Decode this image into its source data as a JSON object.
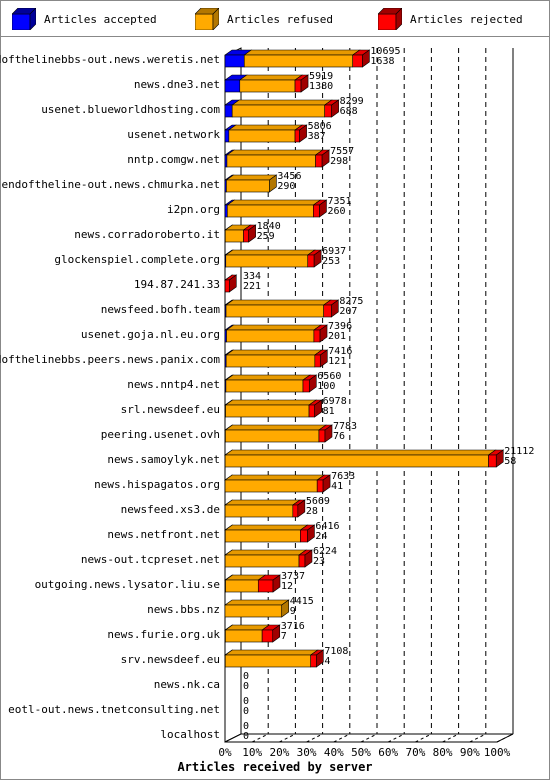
{
  "legend": [
    {
      "label": "Articles accepted",
      "color": "#0000ff",
      "dark": "#000099"
    },
    {
      "label": "Articles refused",
      "color": "#ffaa00",
      "dark": "#b37700"
    },
    {
      "label": "Articles rejected",
      "color": "#ff0000",
      "dark": "#a00000"
    }
  ],
  "chart_data": {
    "type": "bar",
    "orientation": "horizontal",
    "stacked": true,
    "xlabel": "Articles received by server",
    "x_ticks": [
      "0%",
      "10%",
      "20%",
      "30%",
      "40%",
      "50%",
      "60%",
      "70%",
      "80%",
      "90%",
      "100%"
    ],
    "max_total": 21170,
    "categories": [
      "endofthelinebbs-out.news.weretis.net",
      "news.dne3.net",
      "usenet.blueworldhosting.com",
      "usenet.network",
      "nntp.comgw.net",
      "endoftheline-out.news.chmurka.net",
      "i2pn.org",
      "news.corradoroberto.it",
      "glockenspiel.complete.org",
      "194.87.241.33",
      "newsfeed.bofh.team",
      "usenet.goja.nl.eu.org",
      "endofthelinebbs.peers.news.panix.com",
      "news.nntp4.net",
      "srl.newsdeef.eu",
      "peering.usenet.ovh",
      "news.samoylyk.net",
      "news.hispagatos.org",
      "newsfeed.xs3.de",
      "news.netfront.net",
      "news-out.tcpreset.net",
      "outgoing.news.lysator.liu.se",
      "news.bbs.nz",
      "news.furie.org.uk",
      "srv.newsdeef.eu",
      "news.nk.ca",
      "eotl-out.news.tnetconsulting.net",
      "localhost"
    ],
    "labels_top": [
      "10695",
      "5919",
      "8299",
      "5806",
      "7557",
      "3456",
      "7351",
      "1840",
      "6937",
      "334",
      "8275",
      "7396",
      "7416",
      "6560",
      "6978",
      "7783",
      "21112",
      "7633",
      "5669",
      "6416",
      "6224",
      "3737",
      "4415",
      "3716",
      "7108",
      "0",
      "0",
      "0"
    ],
    "labels_bottom": [
      "1638",
      "1380",
      "688",
      "387",
      "298",
      "290",
      "260",
      "259",
      "253",
      "221",
      "207",
      "201",
      "121",
      "100",
      "81",
      "76",
      "58",
      "41",
      "28",
      "24",
      "23",
      "12",
      "9",
      "7",
      "4",
      "0",
      "0",
      "0"
    ],
    "series": [
      {
        "name": "Articles accepted",
        "values": [
          1500,
          1150,
          560,
          300,
          150,
          110,
          180,
          20,
          60,
          5,
          80,
          120,
          90,
          70,
          40,
          30,
          10,
          5,
          8,
          20,
          10,
          40,
          0,
          30,
          20,
          0,
          0,
          0
        ]
      },
      {
        "name": "Articles refused",
        "values": [
          8440,
          4300,
          7200,
          5150,
          6900,
          3346,
          6700,
          1420,
          6380,
          0,
          7600,
          6800,
          6900,
          6000,
          6500,
          7280,
          20500,
          7170,
          5270,
          5850,
          5750,
          2550,
          4415,
          2860,
          6650,
          0,
          0,
          0
        ]
      },
      {
        "name": "Articles rejected",
        "values": [
          755,
          469,
          539,
          356,
          507,
          0,
          471,
          400,
          497,
          329,
          595,
          476,
          426,
          490,
          438,
          473,
          602,
          458,
          391,
          546,
          464,
          1147,
          0,
          826,
          438,
          0,
          0,
          0
        ]
      }
    ]
  }
}
